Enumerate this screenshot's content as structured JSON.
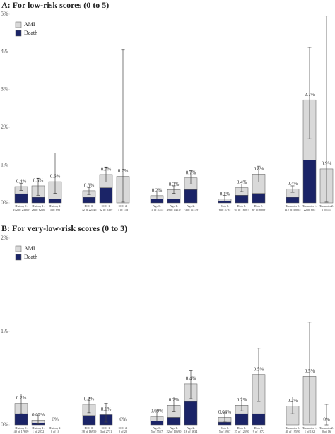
{
  "chart_data": [
    {
      "type": "bar",
      "stacked": true,
      "title": "A: For low-risk scores (0 to 5)",
      "legend": "upper left",
      "categories": [
        "History 0:",
        "History 1:",
        "History 2:",
        "ECG 0:",
        "ECG 1:",
        "ECG 2:",
        "Age 0:",
        "Age 1:",
        "Age 2:",
        "Risk 0:",
        "Risk 1:",
        "Risk 2:",
        "Troponin 0:",
        "Troponin 1:",
        "Troponin 2:"
      ],
      "category_counts": [
        "102 of 23609",
        "26 of 6210",
        "5 of 892",
        "72 of 22446",
        "62 of 8309",
        "1 of 153",
        "11 of 5715",
        "49 of 14117",
        "73 of 11139",
        "6 of 5795",
        "65 of 16207",
        "67 of 8809",
        "112 of 30055",
        "22 of 805",
        "1 of 111"
      ],
      "series": [
        {
          "name": "Death",
          "color": "#1b2467",
          "values": [
            0.24,
            0.15,
            0.1,
            0.15,
            0.4,
            0,
            0.1,
            0.1,
            0.35,
            0.05,
            0.2,
            0.25,
            0.15,
            1.13,
            0
          ]
        },
        {
          "name": "AMI",
          "color": "#d9d9d9",
          "values": [
            0.19,
            0.3,
            0.46,
            0.17,
            0.35,
            0.7,
            0.09,
            0.25,
            0.31,
            0.05,
            0.2,
            0.51,
            0.22,
            1.6,
            0.9
          ]
        }
      ],
      "totals": {
        "values": [
          0.43,
          0.45,
          0.56,
          0.32,
          0.75,
          0.7,
          0.19,
          0.35,
          0.66,
          0.1,
          0.4,
          0.76,
          0.37,
          2.73,
          0.9
        ],
        "value_labels": [
          "0.4%",
          "0.5%",
          "0.6%",
          "0.3%",
          "0.7%",
          "0.7%",
          "0.2%",
          "0.3%",
          "0.7%",
          "0.1%",
          "0.4%",
          "0.8%",
          "0.4%",
          "2.7%",
          "0.9%"
        ]
      },
      "error_low": [
        0.33,
        0.2,
        0.25,
        0.22,
        0.55,
        0.02,
        0.1,
        0.25,
        0.5,
        0.05,
        0.3,
        0.55,
        0.28,
        1.7,
        0.02
      ],
      "error_high": [
        0.52,
        0.65,
        1.32,
        0.4,
        0.95,
        4.05,
        0.3,
        0.45,
        0.85,
        0.2,
        0.5,
        0.97,
        0.45,
        4.12,
        4.95
      ],
      "ylim": [
        0,
        5
      ],
      "yticks": [
        {
          "value": 0,
          "label": "0%"
        },
        {
          "value": 1,
          "label": "1%"
        },
        {
          "value": 2,
          "label": "2%"
        },
        {
          "value": 3,
          "label": "3%"
        },
        {
          "value": 4,
          "label": "4%"
        },
        {
          "value": 5,
          "label": "5%"
        }
      ]
    },
    {
      "type": "bar",
      "stacked": true,
      "title": "B: For very-low-risk scores (0 to 3)",
      "legend": "upper left",
      "categories": [
        "History 0:",
        "History 1:",
        "History 2:",
        "ECG 0:",
        "ECG 1:",
        "ECG 2:",
        "Age 0:",
        "Age 1:",
        "Age 2:",
        "Risk 0:",
        "Risk 1:",
        "Risk 2:",
        "Troponin 0:",
        "Troponin 1:",
        "Troponin 2:"
      ],
      "category_counts": [
        "40 of 17609",
        "1 of 2072",
        "0 of 10",
        "38 of 16959",
        "3 of 2731",
        "0 of 20",
        "5 of 5557",
        "22 of 10690",
        "16 of 3634",
        "5 of 5957",
        "27 of 12590",
        "9 of 1672",
        "40 of 19590",
        "1 of 192",
        "0 of 16"
      ],
      "series": [
        {
          "name": "Death",
          "color": "#1b2467",
          "values": [
            0.12,
            0.02,
            0,
            0.1,
            0.11,
            0,
            0.04,
            0.08,
            0.25,
            0.03,
            0.12,
            0.12,
            0,
            0,
            0
          ]
        },
        {
          "name": "AMI",
          "color": "#d9d9d9",
          "values": [
            0.11,
            0.03,
            0,
            0.12,
            0,
            0,
            0.05,
            0.13,
            0.19,
            0.05,
            0.09,
            0.42,
            0.2,
            0.52,
            0
          ]
        }
      ],
      "totals": {
        "values": [
          0.23,
          0.05,
          0,
          0.22,
          0.11,
          0,
          0.09,
          0.21,
          0.44,
          0.08,
          0.21,
          0.54,
          0.2,
          0.52,
          0
        ],
        "value_labels": [
          "0.2%",
          "0.05%",
          "0%",
          "0.2%",
          "0.1%",
          "0%",
          "0.09%",
          "0.2%",
          "0.4%",
          "0.08%",
          "0.2%",
          "0.5%",
          "0.2%",
          "0.5%",
          "0%"
        ]
      },
      "error_low": [
        0.12,
        0.01,
        null,
        0.13,
        0.03,
        null,
        0.04,
        0.14,
        0.28,
        0.03,
        0.15,
        0.25,
        0.12,
        0.02,
        0
      ],
      "error_high": [
        0.33,
        0.1,
        null,
        0.3,
        0.23,
        null,
        0.15,
        0.3,
        0.58,
        0.13,
        0.3,
        0.82,
        0.3,
        1.1,
        0.22
      ],
      "ylim": [
        0,
        2
      ],
      "yticks": [
        {
          "value": 0,
          "label": "0%"
        },
        {
          "value": 1,
          "label": "1%"
        },
        {
          "value": 2,
          "label": "2%"
        }
      ]
    }
  ]
}
